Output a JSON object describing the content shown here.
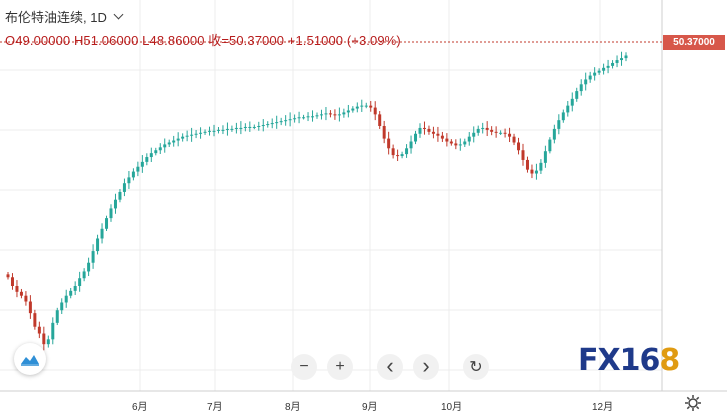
{
  "header": {
    "title": "布伦特油连续, 1D",
    "ohlc": "O49.00000  H51.06000  L48.86000  收=50.37000  +1.51000 (+3.09%)"
  },
  "price_tag": "50.37000",
  "navigation": {
    "zoom_out": "−",
    "zoom_in": "+",
    "scroll_left": "‹",
    "scroll_right": "›",
    "reset": "↻"
  },
  "brand": {
    "text_main": "FX16",
    "text_accent": "8"
  },
  "colors": {
    "up": "#26a69a",
    "down": "#c0392b",
    "grid": "#ececec",
    "price_line": "#c0392b"
  },
  "chart_data": {
    "type": "candlestick",
    "x_labels": [
      "6月",
      "7月",
      "8月",
      "9月",
      "10月",
      "12月"
    ],
    "ylim": [
      20,
      53
    ],
    "last_price": 50.37,
    "close_path": [
      27.5,
      26.6,
      26.0,
      25.6,
      25.0,
      23.8,
      22.4,
      21.7,
      20.6,
      21.1,
      22.8,
      24.1,
      24.9,
      25.6,
      26.1,
      26.6,
      27.4,
      28.1,
      29.0,
      30.2,
      31.5,
      32.5,
      33.6,
      34.6,
      35.5,
      36.3,
      37.2,
      37.8,
      38.4,
      38.9,
      39.4,
      39.9,
      40.3,
      40.6,
      40.9,
      41.2,
      41.4,
      41.6,
      41.8,
      42.0,
      42.1,
      42.2,
      42.3,
      42.4,
      42.5,
      42.6,
      42.6,
      42.7,
      42.7,
      42.8,
      42.8,
      42.9,
      42.9,
      43.0,
      43.0,
      43.0,
      43.1,
      43.2,
      43.3,
      43.4,
      43.5,
      43.6,
      43.7,
      43.8,
      43.9,
      44.0,
      44.0,
      44.1,
      44.1,
      44.2,
      44.3,
      44.4,
      44.3,
      44.2,
      44.3,
      44.5,
      44.7,
      44.9,
      45.1,
      45.2,
      45.2,
      45.0,
      44.3,
      43.1,
      41.8,
      40.8,
      40.1,
      40.0,
      40.2,
      40.8,
      41.5,
      42.3,
      42.9,
      42.8,
      42.5,
      42.3,
      42.1,
      41.8,
      41.5,
      41.3,
      41.1,
      41.2,
      41.5,
      42.0,
      42.4,
      42.8,
      42.9,
      42.7,
      42.5,
      42.4,
      42.4,
      42.3,
      42.0,
      41.4,
      40.6,
      39.6,
      38.6,
      38.2,
      38.5,
      39.3,
      40.5,
      41.7,
      42.8,
      43.7,
      44.5,
      45.2,
      45.9,
      46.7,
      47.4,
      47.9,
      48.3,
      48.6,
      48.8,
      49.1,
      49.3,
      49.6,
      49.9,
      50.1,
      50.37
    ]
  }
}
